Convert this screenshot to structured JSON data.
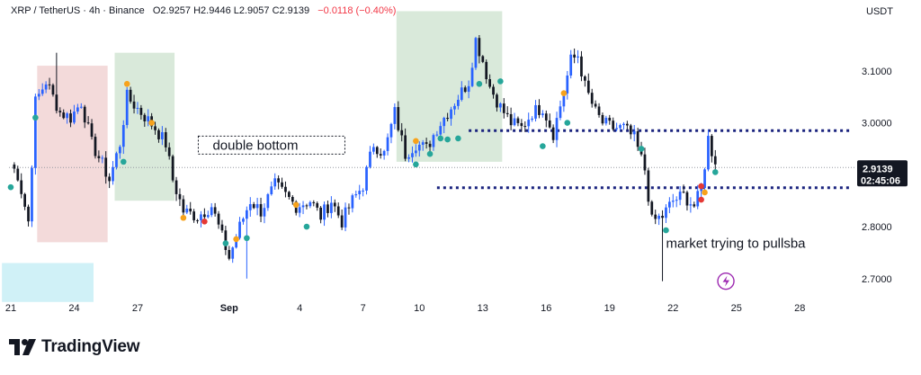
{
  "header": {
    "symbol": "XRP / TetherUS · 4h · Binance",
    "ohlc": "O2.9257  H2.9446  L2.9057  C2.9139",
    "change": "−0.0118 (−0.40%)",
    "currency": "USDT"
  },
  "colors": {
    "up": "#2962ff",
    "down": "#131722",
    "price_tag": "#131722",
    "support_line": "#1a237e",
    "zone_red": "#f3dada",
    "zone_green": "#d9e9da",
    "zone_cyan": "#d0f1f7",
    "marker_teal": "#26a69a",
    "marker_orange": "#f7a21b",
    "marker_red": "#e53935"
  },
  "brand": {
    "name": "TradingView",
    "logo_icon": "tradingview-logo-icon"
  },
  "chart_data": {
    "type": "candlestick",
    "title": "XRP / TetherUS · 4h · Binance",
    "ylabel": "USDT",
    "ylim": [
      2.665,
      3.195
    ],
    "y_ticks": [
      "3.1000",
      "3.0000",
      "2.9000",
      "2.8000",
      "2.7000"
    ],
    "y_tick_values": [
      3.1,
      3.0,
      2.9,
      2.8,
      2.7
    ],
    "x_tick_labels": [
      "21",
      "24",
      "27",
      "Sep",
      "4",
      "7",
      "10",
      "13",
      "16",
      "19",
      "22",
      "25",
      "28"
    ],
    "x_tick_index": [
      0,
      18,
      36,
      62,
      82,
      100,
      116,
      134,
      152,
      170,
      188,
      206,
      224
    ],
    "grid": false,
    "last_price": {
      "value": 2.9139,
      "label": "2.9139",
      "countdown": "02:45:06"
    },
    "levels": [
      {
        "name": "resistance",
        "value": 2.985,
        "from_index": 130,
        "to_index": 238
      },
      {
        "name": "support",
        "value": 2.875,
        "from_index": 121,
        "to_index": 238
      }
    ],
    "zones": [
      {
        "color": "red",
        "from_index": 8,
        "to_index": 27,
        "top": 3.11,
        "bottom": 2.77
      },
      {
        "color": "green",
        "from_index": 30,
        "to_index": 46,
        "top": 3.135,
        "bottom": 2.85
      },
      {
        "color": "green",
        "from_index": 110,
        "to_index": 139,
        "top": 3.215,
        "bottom": 2.925
      },
      {
        "color": "cyan",
        "from_index": -2,
        "to_index": 23,
        "top": 2.73,
        "bottom": 2.655
      }
    ],
    "annotations": [
      {
        "text": "double bottom",
        "boxed": true,
        "index": 54,
        "value": 2.957
      },
      {
        "text": "market trying  to pullsba",
        "boxed": false,
        "index": 186,
        "value": 2.768
      }
    ],
    "anchors": [
      [
        0,
        2.92
      ],
      [
        2,
        2.9
      ],
      [
        5,
        2.81
      ],
      [
        7,
        3.04
      ],
      [
        10,
        3.08
      ],
      [
        14,
        3.02
      ],
      [
        17,
        3.01
      ],
      [
        20,
        3.04
      ],
      [
        23,
        2.96
      ],
      [
        26,
        2.92
      ],
      [
        28,
        2.89
      ],
      [
        31,
        2.96
      ],
      [
        33,
        3.05
      ],
      [
        37,
        3.02
      ],
      [
        41,
        2.99
      ],
      [
        44,
        2.96
      ],
      [
        46,
        2.89
      ],
      [
        49,
        2.83
      ],
      [
        53,
        2.82
      ],
      [
        57,
        2.84
      ],
      [
        60,
        2.78
      ],
      [
        62,
        2.74
      ],
      [
        65,
        2.8
      ],
      [
        68,
        2.85
      ],
      [
        71,
        2.83
      ],
      [
        75,
        2.88
      ],
      [
        78,
        2.86
      ],
      [
        81,
        2.84
      ],
      [
        85,
        2.85
      ],
      [
        88,
        2.82
      ],
      [
        91,
        2.85
      ],
      [
        94,
        2.81
      ],
      [
        97,
        2.85
      ],
      [
        100,
        2.88
      ],
      [
        103,
        2.96
      ],
      [
        106,
        2.94
      ],
      [
        109,
        3.02
      ],
      [
        112,
        2.94
      ],
      [
        115,
        2.96
      ],
      [
        118,
        2.95
      ],
      [
        121,
        2.99
      ],
      [
        124,
        3.02
      ],
      [
        127,
        3.05
      ],
      [
        130,
        3.08
      ],
      [
        132,
        3.16
      ],
      [
        134,
        3.12
      ],
      [
        136,
        3.07
      ],
      [
        139,
        3.03
      ],
      [
        142,
        3.0
      ],
      [
        145,
        2.99
      ],
      [
        148,
        3.02
      ],
      [
        151,
        3.03
      ],
      [
        154,
        2.98
      ],
      [
        157,
        3.06
      ],
      [
        159,
        3.12
      ],
      [
        161,
        3.13
      ],
      [
        163,
        3.07
      ],
      [
        166,
        3.02
      ],
      [
        168,
        3.0
      ],
      [
        171,
        2.99
      ],
      [
        174,
        2.99
      ],
      [
        177,
        2.97
      ],
      [
        180,
        2.91
      ],
      [
        182,
        2.81
      ],
      [
        185,
        2.82
      ],
      [
        188,
        2.85
      ],
      [
        191,
        2.86
      ],
      [
        194,
        2.84
      ],
      [
        196,
        2.87
      ],
      [
        198,
        2.97
      ],
      [
        200,
        2.92
      ]
    ],
    "signal_markers": [
      {
        "type": "teal",
        "index": 0,
        "value": 2.876
      },
      {
        "type": "teal",
        "index": 7,
        "value": 3.01
      },
      {
        "type": "orange",
        "index": 33,
        "value": 3.075
      },
      {
        "type": "teal",
        "index": 32,
        "value": 2.925
      },
      {
        "type": "orange",
        "index": 40,
        "value": 3.0
      },
      {
        "type": "orange",
        "index": 49,
        "value": 2.817
      },
      {
        "type": "red",
        "index": 55,
        "value": 2.81
      },
      {
        "type": "orange",
        "index": 64,
        "value": 2.776
      },
      {
        "type": "teal",
        "index": 61,
        "value": 2.768
      },
      {
        "type": "teal",
        "index": 67,
        "value": 2.778
      },
      {
        "type": "orange",
        "index": 81,
        "value": 2.842
      },
      {
        "type": "teal",
        "index": 84,
        "value": 2.8
      },
      {
        "type": "orange",
        "index": 115,
        "value": 2.965
      },
      {
        "type": "teal",
        "index": 115,
        "value": 2.92
      },
      {
        "type": "teal",
        "index": 119,
        "value": 2.94
      },
      {
        "type": "teal",
        "index": 122,
        "value": 2.97
      },
      {
        "type": "teal",
        "index": 124,
        "value": 2.968
      },
      {
        "type": "teal",
        "index": 127,
        "value": 2.97
      },
      {
        "type": "teal",
        "index": 133,
        "value": 3.075
      },
      {
        "type": "teal",
        "index": 139,
        "value": 3.08
      },
      {
        "type": "teal",
        "index": 151,
        "value": 2.955
      },
      {
        "type": "orange",
        "index": 157,
        "value": 3.057
      },
      {
        "type": "teal",
        "index": 158,
        "value": 3.0
      },
      {
        "type": "teal",
        "index": 179,
        "value": 2.95
      },
      {
        "type": "teal",
        "index": 186,
        "value": 2.793
      },
      {
        "type": "red",
        "index": 196,
        "value": 2.878
      },
      {
        "type": "orange",
        "index": 197,
        "value": 2.866
      },
      {
        "type": "red",
        "index": 196,
        "value": 2.852
      },
      {
        "type": "teal",
        "index": 200,
        "value": 2.905
      }
    ],
    "spikes": [
      {
        "index": 185,
        "low": 2.695
      },
      {
        "index": 67,
        "low": 2.7
      },
      {
        "index": 13,
        "high": 3.135
      }
    ],
    "news_icon": {
      "index": 203,
      "value": 2.695
    }
  }
}
